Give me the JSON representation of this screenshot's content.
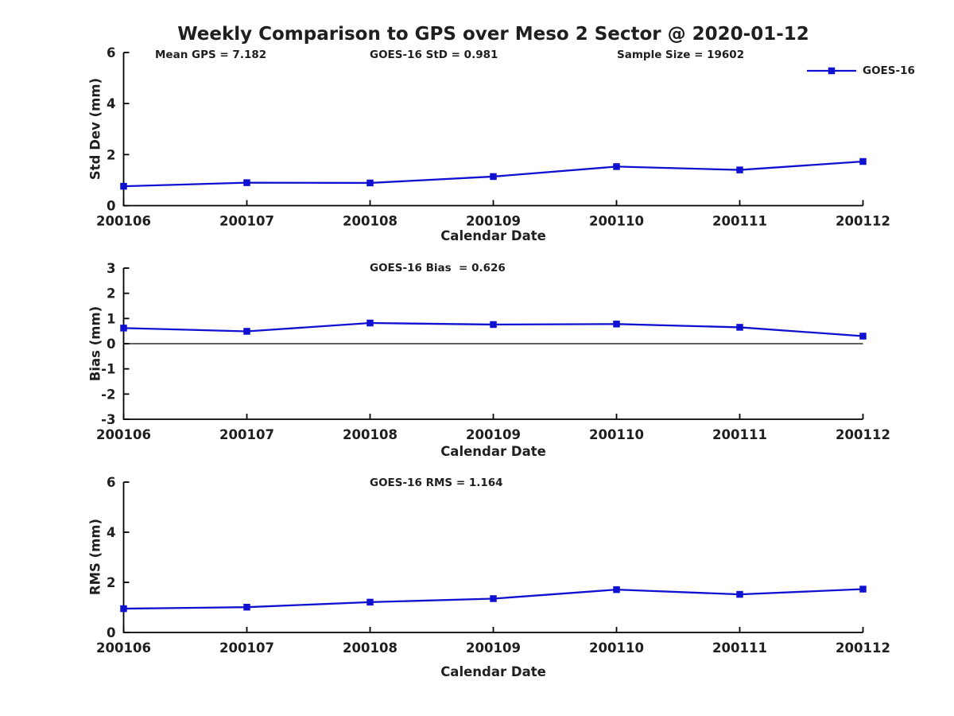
{
  "title": "Weekly Comparison to GPS over Meso 2 Sector @ 2020-01-12",
  "legend": {
    "label": "GOES-16",
    "color": "#1010d0",
    "marker": "square"
  },
  "chart_data": [
    {
      "type": "line",
      "name": "std-dev-vs-date",
      "annotations": [
        "Mean GPS = 7.182",
        "GOES-16 StD = 0.981",
        "Sample Size = 19602"
      ],
      "xlabel": "Calendar Date",
      "ylabel": "Std Dev (mm)",
      "ylim": [
        0,
        6
      ],
      "yticks": [
        0,
        2,
        4,
        6
      ],
      "categories": [
        "200106",
        "200107",
        "200108",
        "200109",
        "200110",
        "200111",
        "200112"
      ],
      "series": [
        {
          "name": "GOES-16",
          "color": "#1010d0",
          "marker": "square",
          "values": [
            0.76,
            0.9,
            0.89,
            1.14,
            1.53,
            1.4,
            1.73
          ]
        }
      ],
      "grid": false,
      "legend_position": "top-right"
    },
    {
      "type": "line",
      "name": "bias-vs-date",
      "subtitle": "GOES-16 Bias  = 0.626",
      "xlabel": "Calendar Date",
      "ylabel": "Bias (mm)",
      "ylim": [
        -3,
        3
      ],
      "yticks": [
        3,
        2,
        1,
        0,
        -1,
        -2,
        -3
      ],
      "zero_line": true,
      "categories": [
        "200106",
        "200107",
        "200108",
        "200109",
        "200110",
        "200111",
        "200112"
      ],
      "series": [
        {
          "name": "GOES-16",
          "color": "#1010d0",
          "marker": "square",
          "values": [
            0.62,
            0.49,
            0.82,
            0.76,
            0.78,
            0.65,
            0.3
          ]
        }
      ],
      "grid": false
    },
    {
      "type": "line",
      "name": "rms-vs-date",
      "subtitle": "GOES-16 RMS = 1.164",
      "xlabel": "Calendar Date",
      "ylabel": "RMS (mm)",
      "ylim": [
        0,
        6
      ],
      "yticks": [
        0,
        2,
        4,
        6
      ],
      "categories": [
        "200106",
        "200107",
        "200108",
        "200109",
        "200110",
        "200111",
        "200112"
      ],
      "series": [
        {
          "name": "GOES-16",
          "color": "#1010d0",
          "marker": "square",
          "values": [
            0.95,
            1.01,
            1.21,
            1.35,
            1.71,
            1.52,
            1.73
          ]
        }
      ],
      "grid": false
    }
  ]
}
